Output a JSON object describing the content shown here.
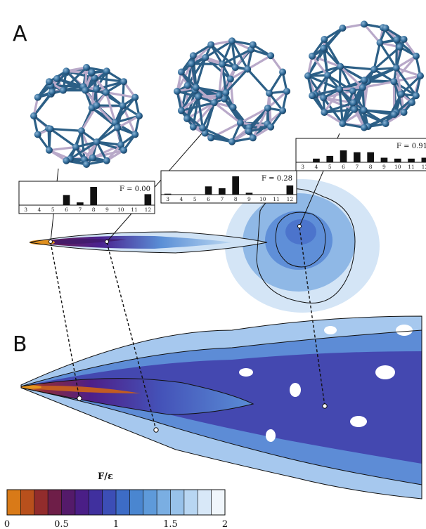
{
  "panels": {
    "a": "A",
    "b": "B"
  },
  "histogram_bins": [
    "3",
    "4",
    "5",
    "6",
    "7",
    "8",
    "9",
    "10",
    "11",
    "12"
  ],
  "insets": [
    {
      "f_label": "F = 0.00",
      "values": [
        0,
        0,
        0,
        0.55,
        0.15,
        1.0,
        0,
        0,
        0,
        0.6
      ]
    },
    {
      "f_label": "F = 0.28",
      "values": [
        0.05,
        0,
        0,
        0.45,
        0.35,
        1.0,
        0.1,
        0,
        0,
        0.5
      ]
    },
    {
      "f_label": "F = 0.91",
      "values": [
        0,
        0.2,
        0.35,
        0.65,
        0.55,
        0.55,
        0.25,
        0.2,
        0.2,
        0.25
      ]
    }
  ],
  "colorbar": {
    "title": "F/ε",
    "ticks": [
      "0",
      "0.5",
      "1",
      "1.5",
      "2"
    ],
    "colors": [
      "#d97a18",
      "#b8501c",
      "#922c2c",
      "#6e1e48",
      "#541a6a",
      "#4a1e86",
      "#40309e",
      "#3c4eb6",
      "#3d6cc6",
      "#4a86d0",
      "#5e9ada",
      "#7aaee2",
      "#98c2ea",
      "#b8d6f2",
      "#d8e8f8",
      "#f0f6fc"
    ]
  }
}
